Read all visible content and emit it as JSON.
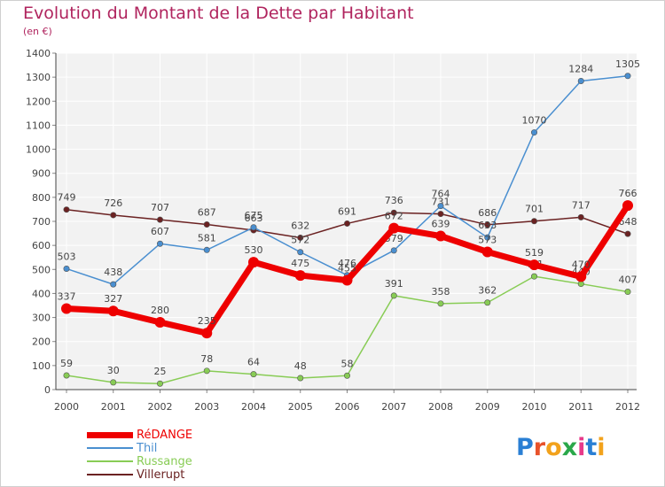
{
  "title": "Evolution du Montant de la Dette par Habitant",
  "subtitle": "(en €)",
  "logo": {
    "text": "Proxiti",
    "letters": [
      {
        "ch": "P",
        "color": "#2a7fd4"
      },
      {
        "ch": "r",
        "color": "#e8522a"
      },
      {
        "ch": "o",
        "color": "#f2a21c"
      },
      {
        "ch": "x",
        "color": "#2aa84a"
      },
      {
        "ch": "i",
        "color": "#e83a8a"
      },
      {
        "ch": "t",
        "color": "#2a7fd4"
      },
      {
        "ch": "i",
        "color": "#f2a21c"
      }
    ]
  },
  "chart_data": {
    "type": "line",
    "x": [
      "2000",
      "2001",
      "2002",
      "2003",
      "2004",
      "2005",
      "2006",
      "2007",
      "2008",
      "2009",
      "2010",
      "2011",
      "2012"
    ],
    "ylim": [
      0,
      1400
    ],
    "yticks": [
      0,
      100,
      200,
      300,
      400,
      500,
      600,
      700,
      800,
      900,
      1000,
      1100,
      1200,
      1300,
      1400
    ],
    "grid": true,
    "legend_position": "bottom-left",
    "series": [
      {
        "name": "RéDANGE",
        "color": "#ee0000",
        "values": [
          337,
          327,
          280,
          235,
          530,
          475,
          455,
          672,
          639,
          573,
          519,
          470,
          766
        ]
      },
      {
        "name": "Thil",
        "color": "#4a8fd0",
        "values": [
          503,
          438,
          607,
          581,
          675,
          572,
          476,
          579,
          764,
          633,
          1070,
          1284,
          1305
        ]
      },
      {
        "name": "Russange",
        "color": "#88cc55",
        "values": [
          59,
          30,
          25,
          78,
          64,
          48,
          58,
          391,
          358,
          362,
          471,
          440,
          407
        ]
      },
      {
        "name": "Villerupt",
        "color": "#6b2222",
        "values": [
          749,
          726,
          707,
          687,
          663,
          632,
          691,
          736,
          731,
          686,
          701,
          717,
          648
        ]
      }
    ]
  }
}
